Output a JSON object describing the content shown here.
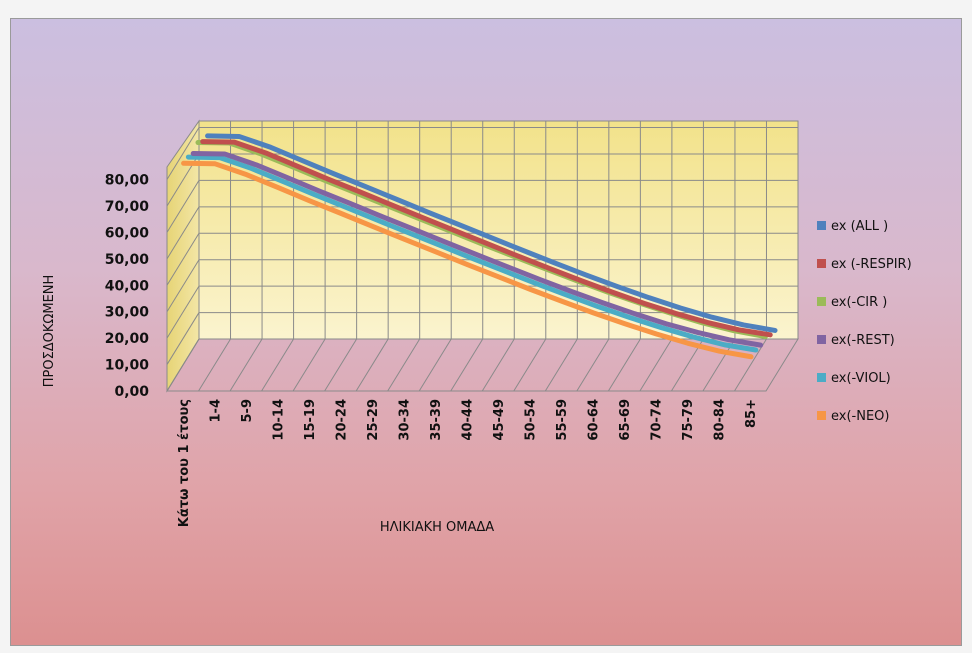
{
  "chart_data": {
    "type": "line",
    "title": "",
    "xlabel": "ΗΛΙΚΙΑΚΗ ΟΜΑΔΑ",
    "ylabel": "ΠΡΟΣΔΟΚΩΜΕΝΗ",
    "ylim": [
      0,
      80
    ],
    "y_ticks": [
      "0,00",
      "10,00",
      "20,00",
      "30,00",
      "40,00",
      "50,00",
      "60,00",
      "70,00",
      "80,00"
    ],
    "categories": [
      "Κάτω του 1 έτους",
      "1-4",
      "5-9",
      "10-14",
      "15-19",
      "20-24",
      "25-29",
      "30-34",
      "35-39",
      "40-44",
      "45-49",
      "50-54",
      "55-59",
      "60-64",
      "65-69",
      "70-74",
      "75-79",
      "80-84",
      "85+"
    ],
    "grid": true,
    "legend_position": "right",
    "series": [
      {
        "name": "ex (ALL )",
        "color": "#4f81bd",
        "values": [
          78.8,
          78.6,
          74.5,
          69.5,
          64.5,
          59.7,
          54.8,
          49.9,
          45.1,
          40.3,
          35.5,
          30.8,
          26.2,
          21.8,
          17.6,
          13.7,
          10.2,
          7.3,
          5.2
        ]
      },
      {
        "name": "ex (-RESPIR)",
        "color": "#c0504d",
        "values": [
          79.6,
          79.4,
          75.3,
          70.3,
          65.3,
          60.5,
          55.6,
          50.7,
          45.9,
          41.1,
          36.3,
          31.6,
          27.0,
          22.6,
          18.4,
          14.6,
          11.2,
          8.4,
          6.5
        ]
      },
      {
        "name": "ex(-CIR )",
        "color": "#9bbb59",
        "values": [
          82.2,
          82.0,
          77.9,
          73.0,
          68.0,
          63.2,
          58.3,
          53.5,
          48.7,
          43.9,
          39.2,
          34.5,
          30.0,
          25.6,
          21.5,
          17.6,
          14.0,
          11.0,
          8.8
        ]
      },
      {
        "name": "ex(-REST)",
        "color": "#8064a2",
        "values": [
          81.0,
          80.8,
          76.7,
          71.8,
          66.8,
          62.0,
          57.1,
          52.3,
          47.5,
          42.7,
          38.0,
          33.3,
          28.8,
          24.5,
          20.4,
          16.6,
          13.3,
          10.5,
          8.5
        ]
      },
      {
        "name": "ex(-VIOL)",
        "color": "#4bacc6",
        "values": [
          82.6,
          82.4,
          78.3,
          73.4,
          68.4,
          63.6,
          58.7,
          53.9,
          49.1,
          44.3,
          39.6,
          34.9,
          30.4,
          26.0,
          21.9,
          18.1,
          14.6,
          11.6,
          9.6
        ]
      },
      {
        "name": "ex(-NEO)",
        "color": "#f79646",
        "values": [
          83.2,
          83.0,
          78.9,
          74.0,
          69.0,
          64.2,
          59.3,
          54.5,
          49.7,
          44.9,
          40.2,
          35.5,
          31.0,
          26.6,
          22.5,
          18.6,
          15.1,
          12.1,
          10.0
        ]
      }
    ]
  }
}
